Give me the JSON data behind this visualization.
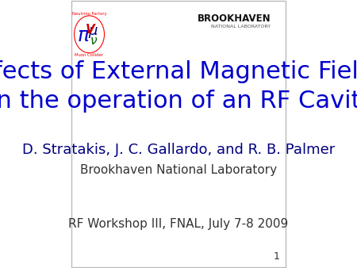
{
  "title_line1": "Effects of External Magnetic Fields",
  "title_line2": "on the operation of an RF Cavity",
  "title_color": "#0000CC",
  "authors": "D. Stratakis, J. C. Gallardo, and R. B. Palmer",
  "authors_color": "#000080",
  "institution": "Brookhaven National Laboratory",
  "institution_color": "#333333",
  "workshop": "RF Workshop III, FNAL, July 7-8 2009",
  "workshop_color": "#333333",
  "slide_number": "1",
  "background_color": "#FFFFFF",
  "brookhaven_text": "BROOKHAVEN",
  "brookhaven_sub": "NATIONAL LABORATORY",
  "title_fontsize": 22,
  "authors_fontsize": 13,
  "institution_fontsize": 11,
  "workshop_fontsize": 11,
  "slide_num_fontsize": 9
}
